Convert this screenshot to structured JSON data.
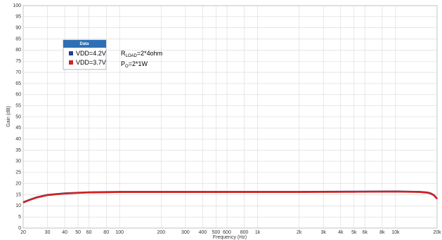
{
  "chart_data": {
    "type": "line",
    "xlabel": "Frequency (Hz)",
    "ylabel": "Gain (dB)",
    "log_x": true,
    "grid": true,
    "xlim": [
      20,
      20000
    ],
    "ylim": [
      0,
      100
    ],
    "xticks": [
      20,
      30,
      40,
      50,
      60,
      80,
      100,
      200,
      300,
      400,
      500,
      600,
      800,
      {
        "value": 1000,
        "label": "1k"
      },
      {
        "value": 2000,
        "label": "2k"
      },
      {
        "value": 3000,
        "label": "3k"
      },
      {
        "value": 4000,
        "label": "4k"
      },
      {
        "value": 5000,
        "label": "5k"
      },
      {
        "value": 6000,
        "label": "6k"
      },
      {
        "value": 8000,
        "label": "8k"
      },
      {
        "value": 10000,
        "label": "10k"
      },
      {
        "value": 20000,
        "label": "20k"
      }
    ],
    "yticks": [
      0,
      5,
      10,
      15,
      20,
      25,
      30,
      35,
      40,
      45,
      50,
      55,
      60,
      65,
      70,
      75,
      80,
      85,
      90,
      95,
      100
    ],
    "legend_title": "Data",
    "x": [
      20,
      22,
      25,
      30,
      35,
      40,
      50,
      60,
      80,
      100,
      200,
      500,
      1000,
      2000,
      5000,
      10000,
      15000,
      17000,
      18000,
      19000,
      20000
    ],
    "series": [
      {
        "name": "VDD=4.2V",
        "color": "#1f3f8f",
        "values": [
          11.6,
          12.6,
          13.8,
          14.9,
          15.3,
          15.6,
          15.9,
          16.1,
          16.2,
          16.3,
          16.3,
          16.3,
          16.3,
          16.3,
          16.4,
          16.5,
          16.3,
          16.0,
          15.6,
          14.8,
          13.2
        ]
      },
      {
        "name": "VDD=3.7V",
        "color": "#d42020",
        "values": [
          11.5,
          12.5,
          13.7,
          14.8,
          15.2,
          15.5,
          15.8,
          16.0,
          16.1,
          16.2,
          16.2,
          16.2,
          16.2,
          16.2,
          16.3,
          16.4,
          16.2,
          15.9,
          15.5,
          14.7,
          13.1
        ]
      }
    ],
    "annotations": [
      {
        "parts": [
          "R",
          "LOAD",
          "=2*4ohm"
        ]
      },
      {
        "parts": [
          "P",
          "O",
          "=2*1W"
        ]
      }
    ]
  }
}
